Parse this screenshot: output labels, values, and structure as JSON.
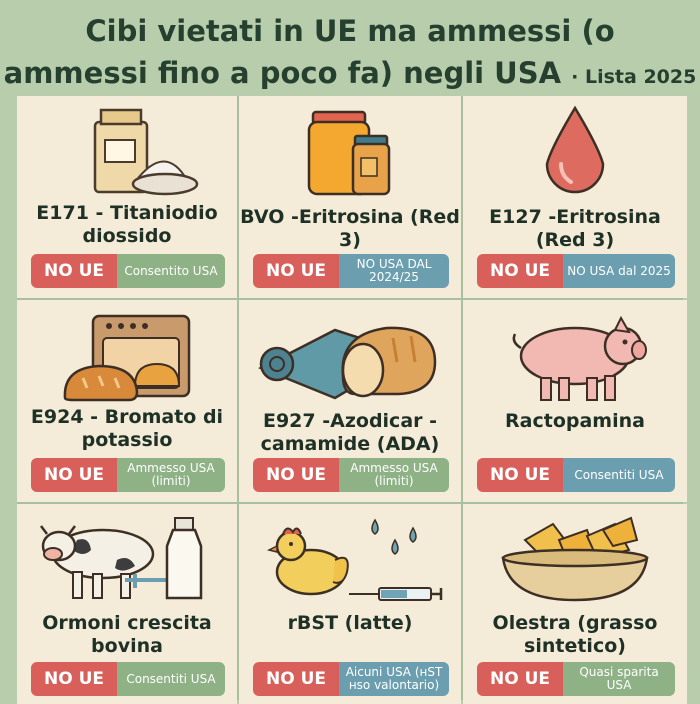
{
  "title": {
    "line1": "Cibi vietati in UE ma ammessi (o",
    "line2": "ammessi fino a poco fa) negli USA",
    "suffix": "· Lista 2025"
  },
  "eu_label": "NO UE",
  "items": [
    {
      "name": "E171 - Titaniodio diossido",
      "icon": "flour-bag-icon",
      "us": "Consentito USA",
      "us_color": "#8eb285"
    },
    {
      "name": "BVO -Eritrosina (Red 3)",
      "icon": "jars-icon",
      "us": "NO USA DAL 2024/25",
      "us_color": "#6b9fb0"
    },
    {
      "name": "E127 -Eritrosina (Red 3)",
      "icon": "red-drop-icon",
      "us": "NO USA dal 2025",
      "us_color": "#6b9fb0"
    },
    {
      "name": "E924 - Bromato di potassio",
      "icon": "oven-bread-icon",
      "us": "Ammesso USA (limiti)",
      "us_color": "#8eb285"
    },
    {
      "name": "E927 -Azodicar - camamide (ADA)",
      "icon": "mat-bread-icon",
      "us": "Ammesso USA (limiti)",
      "us_color": "#8eb285"
    },
    {
      "name": "Ractopamina",
      "icon": "pig-icon",
      "us": "Consentiti USA",
      "us_color": "#6b9fb0"
    },
    {
      "name": "Ormoni crescita bovina",
      "icon": "cow-milk-icon",
      "us": "Consentiti USA",
      "us_color": "#8eb285"
    },
    {
      "name": "rBST (latte)",
      "icon": "chicken-syringe-icon",
      "us": "Aicuni USA (ʜST ʜso valontario)",
      "us_color": "#6b9fb0"
    },
    {
      "name": "Olestra (grasso sintetico)",
      "icon": "chips-bowl-icon",
      "us": "Quasi sparita USA",
      "us_color": "#8eb285"
    }
  ]
}
